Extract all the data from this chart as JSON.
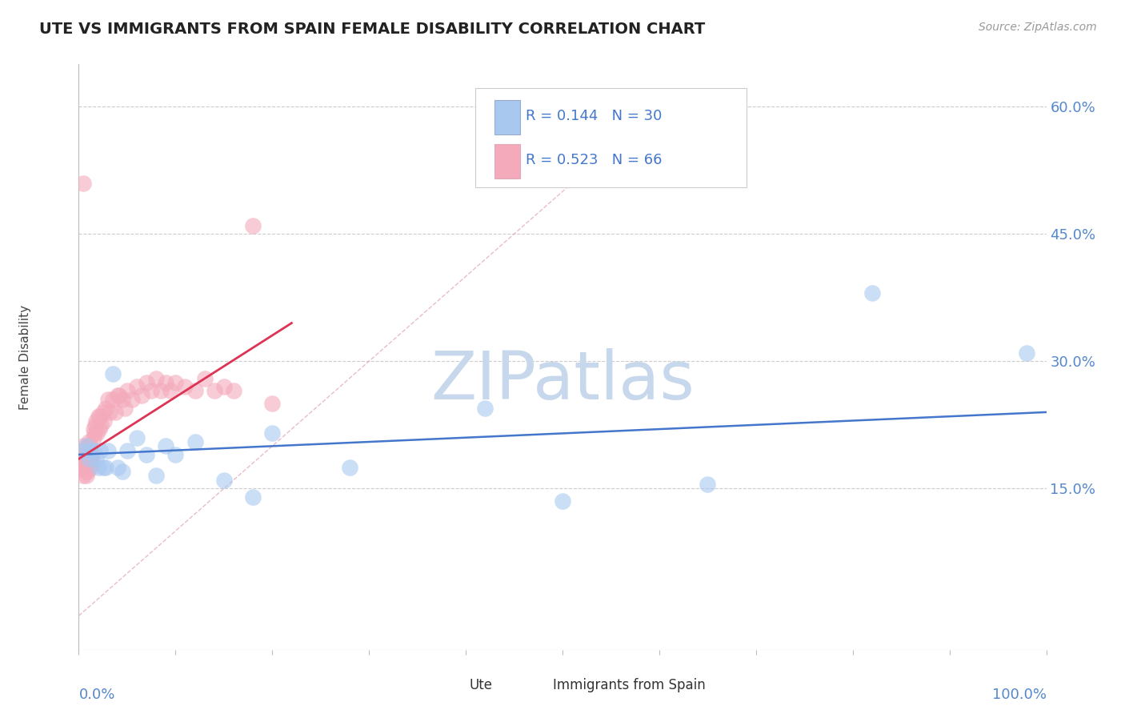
{
  "title": "UTE VS IMMIGRANTS FROM SPAIN FEMALE DISABILITY CORRELATION CHART",
  "source": "Source: ZipAtlas.com",
  "ylabel": "Female Disability",
  "ute_color": "#A8C8F0",
  "ute_edge_color": "#A8C8F0",
  "spain_color": "#F4AABB",
  "spain_edge_color": "#F4AABB",
  "ute_line_color": "#4477CC",
  "spain_line_color": "#DD3355",
  "diag_color": "#E0A0B0",
  "ute_R": 0.144,
  "ute_N": 30,
  "spain_R": 0.523,
  "spain_N": 66,
  "legend_text_blue": "#4477CC",
  "legend_text_pink": "#DD3355",
  "watermark": "ZIPatlas",
  "watermark_color": "#C8D8EC",
  "bg_color": "#FFFFFF",
  "grid_color": "#CCCCCC",
  "title_color": "#222222",
  "axis_label_color": "#5588CC",
  "source_color": "#999999",
  "xlim": [
    0.0,
    1.0
  ],
  "ylim": [
    -0.04,
    0.65
  ],
  "ytick_positions": [
    0.0,
    0.15,
    0.3,
    0.45,
    0.6
  ],
  "ytick_labels": [
    "",
    "15.0%",
    "30.0%",
    "45.0%",
    "60.0%"
  ],
  "ute_x": [
    0.005,
    0.008,
    0.01,
    0.012,
    0.015,
    0.018,
    0.02,
    0.022,
    0.025,
    0.028,
    0.03,
    0.035,
    0.04,
    0.045,
    0.05,
    0.06,
    0.07,
    0.08,
    0.09,
    0.1,
    0.12,
    0.15,
    0.18,
    0.2,
    0.28,
    0.42,
    0.5,
    0.65,
    0.82,
    0.98
  ],
  "ute_y": [
    0.195,
    0.2,
    0.185,
    0.195,
    0.195,
    0.185,
    0.175,
    0.195,
    0.175,
    0.175,
    0.195,
    0.285,
    0.175,
    0.17,
    0.195,
    0.21,
    0.19,
    0.165,
    0.2,
    0.19,
    0.205,
    0.16,
    0.14,
    0.215,
    0.175,
    0.245,
    0.135,
    0.155,
    0.38,
    0.31
  ],
  "spain_x": [
    0.003,
    0.004,
    0.005,
    0.005,
    0.005,
    0.006,
    0.006,
    0.007,
    0.007,
    0.008,
    0.008,
    0.008,
    0.009,
    0.009,
    0.01,
    0.01,
    0.01,
    0.01,
    0.011,
    0.011,
    0.012,
    0.013,
    0.013,
    0.014,
    0.014,
    0.015,
    0.015,
    0.016,
    0.017,
    0.018,
    0.019,
    0.02,
    0.021,
    0.022,
    0.023,
    0.025,
    0.026,
    0.028,
    0.03,
    0.032,
    0.035,
    0.038,
    0.04,
    0.042,
    0.045,
    0.048,
    0.05,
    0.055,
    0.06,
    0.065,
    0.07,
    0.075,
    0.08,
    0.085,
    0.09,
    0.095,
    0.1,
    0.11,
    0.12,
    0.13,
    0.14,
    0.15,
    0.16,
    0.18,
    0.2,
    0.005
  ],
  "spain_y": [
    0.19,
    0.195,
    0.2,
    0.175,
    0.165,
    0.19,
    0.18,
    0.185,
    0.17,
    0.185,
    0.175,
    0.165,
    0.18,
    0.17,
    0.205,
    0.195,
    0.185,
    0.175,
    0.2,
    0.19,
    0.195,
    0.185,
    0.175,
    0.19,
    0.18,
    0.22,
    0.21,
    0.215,
    0.225,
    0.23,
    0.215,
    0.235,
    0.22,
    0.235,
    0.225,
    0.24,
    0.23,
    0.245,
    0.255,
    0.24,
    0.255,
    0.24,
    0.26,
    0.26,
    0.255,
    0.245,
    0.265,
    0.255,
    0.27,
    0.26,
    0.275,
    0.265,
    0.28,
    0.265,
    0.275,
    0.265,
    0.275,
    0.27,
    0.265,
    0.28,
    0.265,
    0.27,
    0.265,
    0.46,
    0.25,
    0.51
  ],
  "blue_line_x": [
    0.0,
    1.0
  ],
  "blue_line_y": [
    0.19,
    0.24
  ],
  "pink_line_x": [
    0.0,
    0.22
  ],
  "pink_line_y": [
    0.185,
    0.345
  ]
}
